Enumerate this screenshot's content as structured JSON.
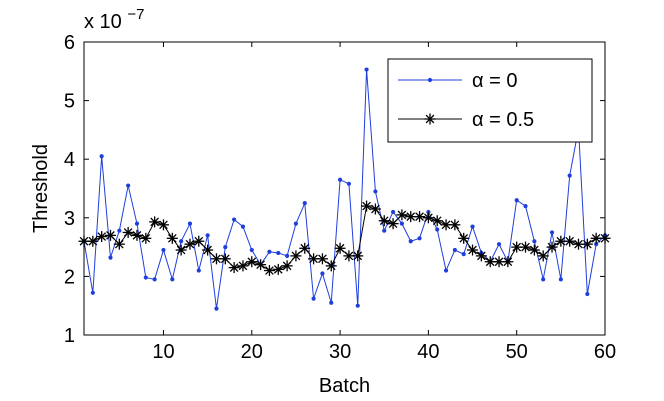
{
  "chart_data": {
    "type": "line",
    "title": "",
    "xlabel": "Batch",
    "ylabel": "Threshold",
    "y_scale_label": "x 10",
    "y_scale_exponent": "−7",
    "xlim": [
      1,
      60
    ],
    "ylim": [
      1,
      6
    ],
    "x_ticks": [
      10,
      20,
      30,
      40,
      50,
      60
    ],
    "y_ticks": [
      1,
      2,
      3,
      4,
      5,
      6
    ],
    "grid": false,
    "legend_position": "top-right",
    "x": [
      1,
      2,
      3,
      4,
      5,
      6,
      7,
      8,
      9,
      10,
      11,
      12,
      13,
      14,
      15,
      16,
      17,
      18,
      19,
      20,
      21,
      22,
      23,
      24,
      25,
      26,
      27,
      28,
      29,
      30,
      31,
      32,
      33,
      34,
      35,
      36,
      37,
      38,
      39,
      40,
      41,
      42,
      43,
      44,
      45,
      46,
      47,
      48,
      49,
      50,
      51,
      52,
      53,
      54,
      55,
      56,
      57,
      58,
      59,
      60
    ],
    "series": [
      {
        "name": "α = 0",
        "color": "#1f3fdd",
        "marker": "dot",
        "values": [
          2.6,
          1.72,
          4.05,
          2.32,
          2.78,
          3.55,
          2.9,
          1.98,
          1.95,
          2.45,
          1.95,
          2.6,
          2.9,
          2.1,
          2.7,
          1.45,
          2.5,
          2.97,
          2.85,
          2.45,
          2.2,
          2.42,
          2.4,
          2.35,
          2.9,
          3.25,
          1.62,
          2.05,
          1.55,
          3.65,
          3.58,
          1.5,
          5.53,
          3.45,
          2.78,
          3.1,
          2.9,
          2.6,
          2.65,
          3.1,
          2.8,
          2.1,
          2.45,
          2.38,
          2.85,
          2.4,
          2.25,
          2.55,
          2.25,
          3.3,
          3.2,
          2.6,
          1.95,
          2.75,
          1.95,
          3.72,
          4.52,
          1.7,
          2.55,
          2.7
        ]
      },
      {
        "name": "α = 0.5",
        "color": "#000000",
        "marker": "asterisk",
        "values": [
          2.6,
          2.6,
          2.68,
          2.7,
          2.55,
          2.75,
          2.7,
          2.65,
          2.93,
          2.88,
          2.65,
          2.45,
          2.55,
          2.6,
          2.45,
          2.3,
          2.3,
          2.15,
          2.18,
          2.25,
          2.2,
          2.1,
          2.12,
          2.18,
          2.35,
          2.48,
          2.3,
          2.3,
          2.18,
          2.48,
          2.35,
          2.35,
          3.2,
          3.15,
          2.95,
          2.9,
          3.05,
          3.02,
          3.02,
          3.0,
          2.95,
          2.88,
          2.88,
          2.65,
          2.45,
          2.35,
          2.25,
          2.25,
          2.25,
          2.5,
          2.5,
          2.45,
          2.35,
          2.5,
          2.6,
          2.6,
          2.55,
          2.55,
          2.65,
          2.65
        ]
      }
    ]
  }
}
